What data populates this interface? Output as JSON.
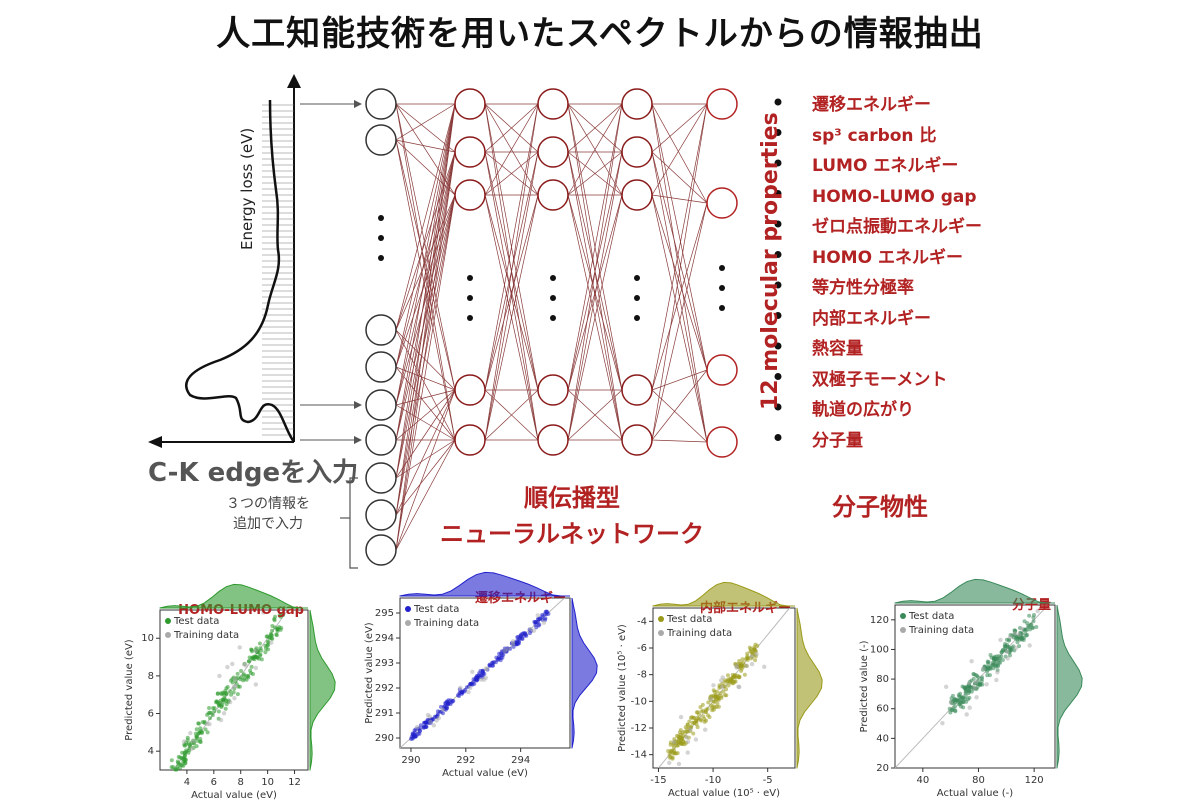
{
  "title": "人工知能技術を用いたスペクトルからの情報抽出",
  "input_label": "C-K edgeを入力",
  "extra_info": [
    "３つの情報を",
    "追加で入力"
  ],
  "energy_loss_label": "Energy loss (eV)",
  "network_label": [
    "順伝播型",
    "ニューラルネットワーク"
  ],
  "properties_heading": "分子物性",
  "properties_rotated": "12 molecular properties",
  "properties": [
    "遷移エネルギー",
    "sp³ carbon 比",
    "LUMO エネルギー",
    "HOMO-LUMO gap",
    "ゼロ点振動エネルギー",
    "HOMO エネルギー",
    "等方性分極率",
    "内部エネルギー",
    "熱容量",
    "双極子モーメント",
    "軌道の広がり",
    "分子量"
  ],
  "colors": {
    "accent": "#b22222",
    "green": "#2e9a2e",
    "blue": "#2222cc",
    "olive": "#9a9a1a",
    "teal": "#3a8a5a"
  },
  "chart_data": [
    {
      "type": "scatter",
      "title": "HOMO-LUMO gap",
      "color": "#2e9a2e",
      "xlabel": "Actual value (eV)",
      "ylabel": "Predicted value (eV)",
      "xlim": [
        2,
        13
      ],
      "ylim": [
        3,
        11.5
      ],
      "xticks": [
        4,
        6,
        8,
        10,
        12
      ],
      "yticks": [
        4,
        6,
        8,
        10
      ],
      "legend": [
        "Test data",
        "Training data"
      ],
      "series": [
        {
          "name": "Test data",
          "x": [
            3,
            4,
            5,
            6,
            7,
            8,
            9,
            10,
            11
          ],
          "y": [
            3,
            4,
            5,
            6,
            7,
            8,
            9,
            10,
            11
          ]
        }
      ]
    },
    {
      "type": "scatter",
      "title": "遷移エネルギー",
      "color": "#2222cc",
      "xlabel": "Actual value (eV)",
      "ylabel": "Predicted value (eV)",
      "xlim": [
        289.6,
        295.8
      ],
      "ylim": [
        289.6,
        295.6
      ],
      "xticks": [
        290,
        292,
        294
      ],
      "yticks": [
        290,
        291,
        292,
        293,
        294,
        295
      ],
      "legend": [
        "Test data",
        "Training data"
      ],
      "series": [
        {
          "name": "Test data",
          "x": [
            290,
            291,
            292,
            293,
            294,
            295
          ],
          "y": [
            290,
            291,
            292,
            293,
            294,
            295
          ]
        }
      ]
    },
    {
      "type": "scatter",
      "title": "内部エネルギー",
      "color": "#9a9a1a",
      "xlabel": "Actual value (10⁵ · eV)",
      "ylabel": "Predicted value (10⁵ · eV)",
      "xlim": [
        -15.5,
        -2.5
      ],
      "ylim": [
        -15,
        -3
      ],
      "xticks": [
        -15,
        -10,
        -5
      ],
      "yticks": [
        -4,
        -6,
        -8,
        -10,
        -12,
        -14
      ],
      "legend": [
        "Test data",
        "Training data"
      ],
      "series": [
        {
          "name": "Test data",
          "x": [
            -14,
            -12,
            -10,
            -8,
            -6
          ],
          "y": [
            -14,
            -12,
            -10,
            -8,
            -6
          ]
        }
      ]
    },
    {
      "type": "scatter",
      "title": "分子量",
      "color": "#3a8a5a",
      "xlabel": "Actual value (-)",
      "ylabel": "Predicted value (-)",
      "xlim": [
        20,
        135
      ],
      "ylim": [
        20,
        130
      ],
      "xticks": [
        40,
        80,
        120
      ],
      "yticks": [
        20,
        40,
        60,
        80,
        100,
        120
      ],
      "legend": [
        "Test data",
        "Training data"
      ],
      "series": [
        {
          "name": "Test data",
          "x": [
            60,
            80,
            100,
            120
          ],
          "y": [
            60,
            80,
            100,
            120
          ]
        }
      ]
    }
  ]
}
